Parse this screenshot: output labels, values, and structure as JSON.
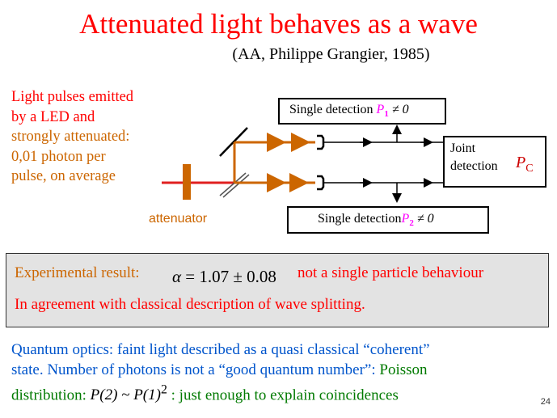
{
  "title": "Attenuated light behaves as a wave",
  "subtitle": "(AA, Philippe Grangier, 1985)",
  "description": {
    "line1": "Light pulses emitted",
    "line2": "by a LED and",
    "line3": "strongly attenuated:",
    "line4": "0,01 photon per",
    "line5": "pulse, on average"
  },
  "attenuator_label": "attenuator",
  "detector1": {
    "text": "Single detection ",
    "symbol": "P",
    "subscript": "1",
    "relation": " ≠ 0"
  },
  "joint": {
    "line1": "Joint",
    "line2": "detection",
    "symbol": "P",
    "subscript": "C"
  },
  "detector2": {
    "text": "Single detection",
    "symbol": "P",
    "subscript": "2",
    "relation": " ≠ 0"
  },
  "result": {
    "label": "Experimental result:",
    "formula_symbol": "α",
    "formula_value": " = 1.07 ± 0.08",
    "note": "not a single particle behaviour",
    "line2": "In agreement with classical description of wave splitting."
  },
  "quantum_optics": {
    "line1": "Quantum optics: faint light described as a quasi classical “coherent”",
    "line2a": "state. Number of photons is not a “good quantum number”:",
    "line2b": " Poisson",
    "line3a": "distribution: ",
    "formula": "P(2) ~ P(1)",
    "formula_exp": "2",
    "line3b": " :  just enough to explain coincidences"
  },
  "page_number": "24",
  "colors": {
    "title": "#ff0000",
    "beam": "#cc6600",
    "magenta": "#ff00ff",
    "blue": "#0055cc",
    "green": "#007a00",
    "result_bg": "#e3e3e3"
  }
}
